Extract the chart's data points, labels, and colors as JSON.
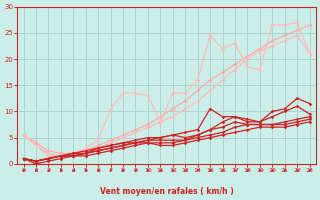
{
  "bg_color": "#cceee8",
  "grid_color": "#aad4ce",
  "xlabel": "Vent moyen/en rafales ( km/h )",
  "xlim": [
    -0.5,
    23.5
  ],
  "ylim": [
    0,
    30
  ],
  "xticks": [
    0,
    1,
    2,
    3,
    4,
    5,
    6,
    7,
    8,
    9,
    10,
    11,
    12,
    13,
    14,
    15,
    16,
    17,
    18,
    19,
    20,
    21,
    22,
    23
  ],
  "yticks": [
    0,
    5,
    10,
    15,
    20,
    25,
    30
  ],
  "series": [
    {
      "x": [
        0,
        1,
        2,
        3,
        4,
        5,
        6,
        7,
        8,
        9,
        10,
        11,
        12,
        13,
        14,
        15,
        16,
        17,
        18,
        19,
        20,
        21,
        22,
        23
      ],
      "y": [
        5.5,
        4.0,
        2.5,
        2.0,
        2.0,
        2.5,
        3.5,
        4.5,
        5.5,
        6.5,
        7.5,
        9.0,
        10.5,
        12.0,
        14.0,
        16.0,
        17.5,
        19.0,
        20.5,
        22.0,
        23.5,
        24.5,
        25.5,
        26.5
      ],
      "color": "#ffaaaa",
      "lw": 0.9,
      "marker": "D",
      "ms": 2.0
    },
    {
      "x": [
        0,
        1,
        2,
        3,
        4,
        5,
        6,
        7,
        8,
        9,
        10,
        11,
        12,
        13,
        14,
        15,
        16,
        17,
        18,
        19,
        20,
        21,
        22,
        23
      ],
      "y": [
        5.5,
        3.5,
        2.0,
        1.5,
        1.5,
        2.0,
        3.0,
        4.0,
        5.0,
        6.0,
        7.0,
        8.0,
        9.0,
        10.5,
        12.0,
        14.0,
        16.0,
        18.0,
        20.0,
        21.5,
        22.5,
        23.5,
        24.5,
        21.0
      ],
      "color": "#ffbbbb",
      "lw": 0.9,
      "marker": "D",
      "ms": 2.0
    },
    {
      "x": [
        0,
        2,
        3,
        4,
        5,
        6,
        7,
        8,
        9,
        10,
        11,
        12,
        13,
        14,
        15,
        16,
        17,
        18,
        19,
        20,
        21,
        22,
        23
      ],
      "y": [
        5.5,
        1.5,
        1.5,
        2.0,
        3.0,
        4.5,
        10.5,
        13.5,
        13.5,
        13.0,
        8.0,
        13.5,
        13.5,
        16.0,
        24.5,
        22.0,
        23.0,
        18.5,
        18.0,
        26.5,
        26.5,
        27.0,
        21.0
      ],
      "color": "#ffbbbb",
      "lw": 0.9,
      "marker": "D",
      "ms": 2.0
    },
    {
      "x": [
        0,
        1,
        2,
        3,
        4,
        5,
        6,
        7,
        8,
        9,
        10,
        11,
        12,
        13,
        14,
        15,
        16,
        17,
        18,
        19,
        20,
        21,
        22,
        23
      ],
      "y": [
        1.0,
        0.0,
        0.5,
        1.0,
        1.5,
        2.0,
        2.5,
        3.0,
        3.5,
        4.0,
        4.5,
        5.0,
        5.5,
        6.0,
        6.5,
        10.5,
        9.0,
        9.0,
        8.0,
        8.0,
        10.0,
        10.5,
        12.5,
        11.5
      ],
      "color": "#cc2222",
      "lw": 0.9,
      "marker": "D",
      "ms": 1.8
    },
    {
      "x": [
        0,
        1,
        2,
        3,
        4,
        5,
        6,
        7,
        8,
        9,
        10,
        11,
        12,
        13,
        14,
        15,
        16,
        17,
        18,
        19,
        20,
        21,
        22,
        23
      ],
      "y": [
        1.0,
        0.5,
        1.0,
        1.5,
        2.0,
        2.5,
        3.0,
        3.5,
        4.0,
        4.5,
        5.0,
        5.0,
        5.5,
        5.0,
        5.5,
        6.5,
        8.0,
        9.0,
        8.5,
        8.0,
        9.0,
        10.0,
        11.0,
        9.5
      ],
      "color": "#cc2222",
      "lw": 0.9,
      "marker": "D",
      "ms": 1.8
    },
    {
      "x": [
        0,
        1,
        2,
        3,
        4,
        5,
        6,
        7,
        8,
        9,
        10,
        11,
        12,
        13,
        14,
        15,
        16,
        17,
        18,
        19,
        20,
        21,
        22,
        23
      ],
      "y": [
        1.0,
        0.5,
        1.0,
        1.5,
        2.0,
        2.0,
        3.0,
        3.5,
        4.0,
        4.0,
        4.5,
        4.5,
        4.5,
        4.5,
        5.5,
        6.5,
        7.0,
        8.0,
        7.5,
        7.5,
        7.5,
        8.0,
        8.5,
        9.0
      ],
      "color": "#cc2222",
      "lw": 0.9,
      "marker": "D",
      "ms": 1.8
    },
    {
      "x": [
        0,
        1,
        2,
        3,
        4,
        5,
        6,
        7,
        8,
        9,
        10,
        11,
        12,
        13,
        14,
        15,
        16,
        17,
        18,
        19,
        20,
        21,
        22,
        23
      ],
      "y": [
        1.0,
        0.5,
        1.0,
        1.5,
        1.5,
        2.0,
        2.5,
        3.0,
        3.5,
        4.0,
        4.0,
        4.0,
        4.0,
        4.5,
        5.0,
        5.5,
        6.0,
        7.0,
        7.5,
        7.5,
        7.5,
        7.5,
        8.0,
        8.5
      ],
      "color": "#cc2222",
      "lw": 0.9,
      "marker": "D",
      "ms": 1.8
    },
    {
      "x": [
        0,
        1,
        2,
        3,
        4,
        5,
        6,
        7,
        8,
        9,
        10,
        11,
        12,
        13,
        14,
        15,
        16,
        17,
        18,
        19,
        20,
        21,
        22,
        23
      ],
      "y": [
        1.0,
        0.5,
        1.0,
        1.5,
        1.5,
        1.5,
        2.0,
        2.5,
        3.0,
        3.5,
        4.0,
        3.5,
        3.5,
        4.0,
        4.5,
        5.0,
        5.5,
        6.0,
        6.5,
        7.0,
        7.0,
        7.0,
        7.5,
        8.0
      ],
      "color": "#cc2222",
      "lw": 0.9,
      "marker": "D",
      "ms": 1.8
    }
  ],
  "arrow_color": "#cc2222",
  "spine_color": "#cc2222",
  "tick_color": "#cc2222",
  "label_color": "#cc2222"
}
